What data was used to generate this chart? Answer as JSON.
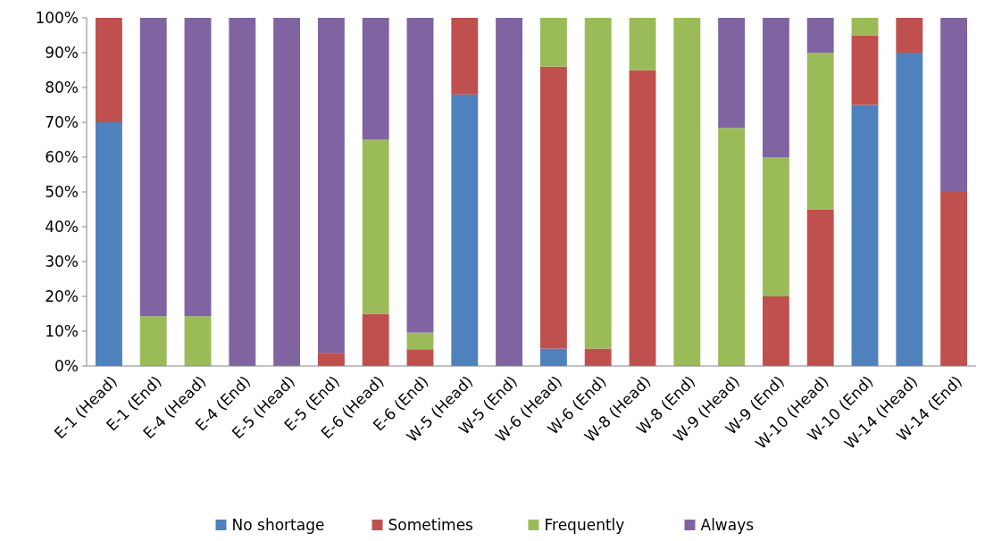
{
  "chart_data": {
    "type": "bar",
    "stacked": true,
    "categories": [
      "E-1 (Head)",
      "E-1 (End)",
      "E-4 (Head)",
      "E-4 (End)",
      "E-5 (Head)",
      "E-5 (End)",
      "E-6 (Head)",
      "E-6 (End)",
      "W-5 (Head)",
      "W-5 (End)",
      "W-6 (Head)",
      "W-6 (End)",
      "W-8 (Head)",
      "W-8 (End)",
      "W-9 (Head)",
      "W-9 (End)",
      "W-10 (Head)",
      "W-10 (End)",
      "W-14 (Head)",
      "W-14 (End)"
    ],
    "series": [
      {
        "name": "No shortage",
        "color": "#4f81bd",
        "values": [
          70,
          0,
          0,
          0,
          0,
          0,
          0,
          0,
          78,
          0,
          5,
          0,
          0,
          0,
          0,
          0,
          0,
          75,
          90,
          0
        ]
      },
      {
        "name": "Sometimes",
        "color": "#c0504d",
        "values": [
          30,
          0,
          0,
          0,
          0,
          3.8,
          15,
          4.8,
          22,
          0,
          81,
          5,
          85,
          0,
          0,
          20,
          45,
          20,
          10,
          50
        ]
      },
      {
        "name": "Frequently",
        "color": "#9bbb59",
        "values": [
          0,
          14.3,
          14.3,
          0,
          0,
          0,
          50,
          4.8,
          0,
          0,
          14,
          95,
          15,
          100,
          68.4,
          40,
          45,
          5,
          0,
          0
        ]
      },
      {
        "name": "Always",
        "color": "#8064a2",
        "values": [
          0,
          85.7,
          85.7,
          100,
          100,
          96.2,
          35,
          90.4,
          0,
          100,
          0,
          0,
          0,
          0,
          31.6,
          40,
          10,
          0,
          0,
          50
        ]
      }
    ],
    "ylim": [
      0,
      100
    ],
    "yticks": [
      {
        "value": 0,
        "label": "0%"
      },
      {
        "value": 10,
        "label": "10%"
      },
      {
        "value": 20,
        "label": "20%"
      },
      {
        "value": 30,
        "label": "30%"
      },
      {
        "value": 40,
        "label": "40%"
      },
      {
        "value": 50,
        "label": "50%"
      },
      {
        "value": 60,
        "label": "60%"
      },
      {
        "value": 70,
        "label": "70%"
      },
      {
        "value": 80,
        "label": "80%"
      },
      {
        "value": 90,
        "label": "90%"
      },
      {
        "value": 100,
        "label": "100%"
      }
    ],
    "legend": "bottom"
  }
}
